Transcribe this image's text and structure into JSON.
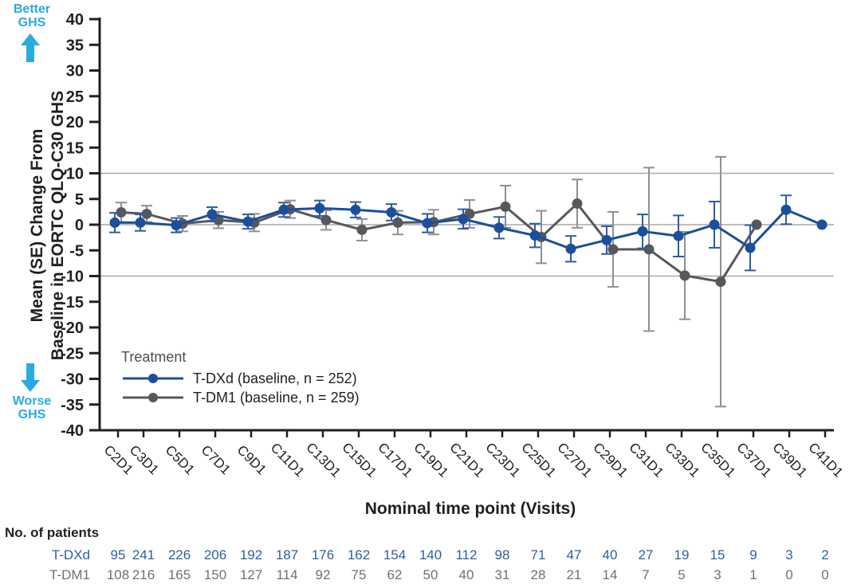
{
  "annotations": {
    "better": "Better\nGHS",
    "worse": "Worse\nGHS"
  },
  "y_axis_title": {
    "line1": "Mean (SE) Change From",
    "line2": "Baseline in EORTC QLQ-C30 GHS"
  },
  "x_axis_title": "Nominal time point (Visits)",
  "legend": {
    "title": "Treatment"
  },
  "colors": {
    "accent_cyan": "#29abe2",
    "axis": "#231f20",
    "grid": "#a7a9ac",
    "tdxd_blue": "#1b4f9c",
    "tdm1_gray": "#57585b"
  },
  "chart_data": {
    "type": "line",
    "title": "",
    "xlabel": "Nominal time point (Visits)",
    "ylabel": "Mean (SE) Change From Baseline in EORTC QLQ-C30 GHS",
    "ylim": [
      -40,
      40
    ],
    "ytick_step": 5,
    "reference_lines": [
      10,
      0,
      -10
    ],
    "grid": false,
    "legend_position": "inside bottom-left",
    "categories": [
      "C2D1",
      "C3D1",
      "C5D1",
      "C7D1",
      "C9D1",
      "C11D1",
      "C13D1",
      "C15D1",
      "C17D1",
      "C19D1",
      "C21D1",
      "C23D1",
      "C25D1",
      "C27D1",
      "C29D1",
      "C31D1",
      "C33D1",
      "C35D1",
      "C37D1",
      "C39D1",
      "C41D1"
    ],
    "series": [
      {
        "name": "T-DXd (baseline, n = 252)",
        "color": "#1b4f9c",
        "error_color": "#2e5ca6",
        "means": [
          0.4,
          0.4,
          -0.1,
          2.0,
          0.6,
          2.9,
          3.2,
          2.9,
          2.4,
          0.3,
          1.1,
          -0.6,
          -2.1,
          -4.7,
          -3.0,
          -1.3,
          -2.2,
          0.0,
          -4.5,
          2.9,
          0.0
        ],
        "se": [
          1.9,
          1.6,
          1.4,
          1.4,
          1.4,
          1.4,
          1.5,
          1.5,
          1.6,
          1.8,
          1.9,
          2.1,
          2.3,
          2.5,
          2.7,
          3.3,
          4.0,
          4.5,
          4.4,
          2.8,
          0
        ]
      },
      {
        "name": "T-DM1 (baseline, n = 259)",
        "color": "#57585b",
        "error_color": "#8f9092",
        "means": [
          2.4,
          2.1,
          0.2,
          0.9,
          0.4,
          3.0,
          0.9,
          -1.0,
          0.4,
          0.5,
          2.1,
          3.5,
          -2.4,
          4.1,
          -4.8,
          -4.8,
          -9.9,
          -11.1,
          0.0,
          null,
          null
        ],
        "se": [
          1.9,
          1.6,
          1.5,
          1.6,
          1.7,
          1.7,
          1.9,
          2.1,
          2.3,
          2.4,
          2.7,
          4.1,
          5.1,
          4.7,
          7.3,
          15.9,
          8.5,
          24.3,
          0,
          null,
          null
        ]
      }
    ]
  },
  "patients_table": {
    "header": "No. of patients",
    "rows": [
      {
        "label": "T-DXd",
        "color": "#2e5f9e",
        "values": [
          95,
          241,
          226,
          206,
          192,
          187,
          176,
          162,
          154,
          140,
          112,
          98,
          71,
          47,
          40,
          27,
          19,
          15,
          9,
          3,
          2
        ]
      },
      {
        "label": "T-DM1",
        "color": "#707173",
        "values": [
          108,
          216,
          165,
          150,
          127,
          114,
          92,
          75,
          62,
          50,
          40,
          31,
          28,
          21,
          14,
          7,
          5,
          3,
          1,
          0,
          0
        ]
      }
    ]
  }
}
